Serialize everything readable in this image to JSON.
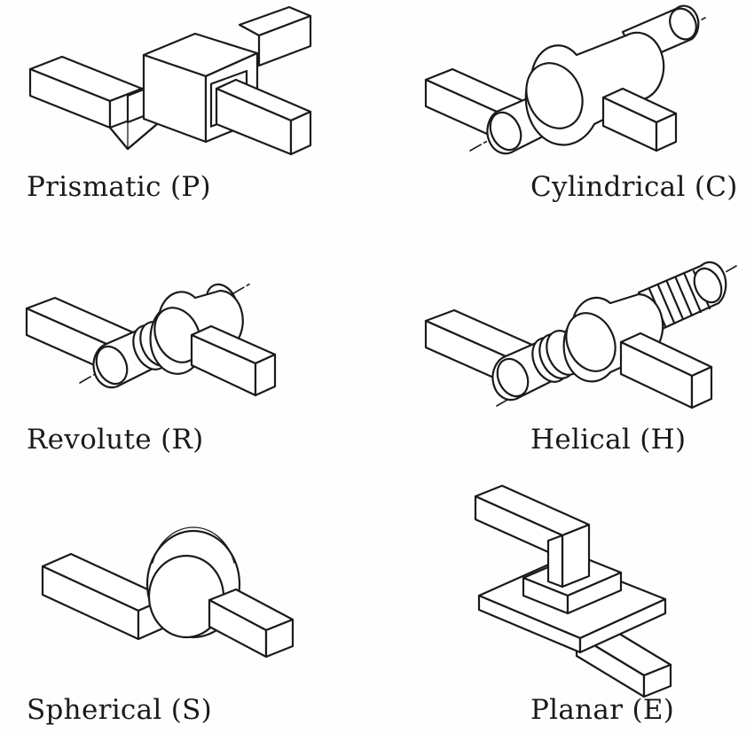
{
  "joints": {
    "prismatic": {
      "label": "Prismatic (P)"
    },
    "cylindrical": {
      "label": "Cylindrical (C)"
    },
    "revolute": {
      "label": "Revolute (R)"
    },
    "helical": {
      "label": "Helical (H)"
    },
    "spherical": {
      "label": "Spherical (S)"
    },
    "planar": {
      "label": "Planar (E)"
    }
  },
  "colors": {
    "ink": "#1a1a1a",
    "paper": "#ffffff"
  }
}
